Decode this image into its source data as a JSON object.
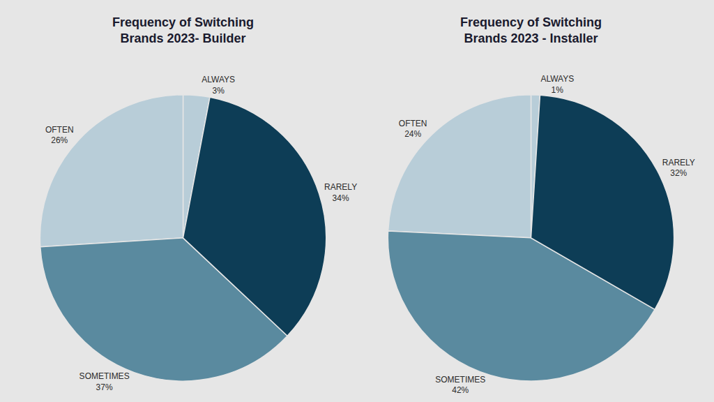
{
  "chart_data": [
    {
      "type": "pie",
      "title": "Frequency of Switching\nBrands 2023- Builder",
      "categories": [
        "ALWAYS",
        "OFTEN",
        "SOMETIMES",
        "RARELY"
      ],
      "values": [
        3,
        26,
        37,
        34
      ],
      "value_labels": [
        "3%",
        "26%",
        "37%",
        "34%"
      ],
      "colors": [
        "#b8cdd8",
        "#b8cdd8",
        "#5a8a9f",
        "#0d3d56"
      ]
    },
    {
      "type": "pie",
      "title": "Frequency of Switching\nBrands 2023 - Installer",
      "categories": [
        "ALWAYS",
        "OFTEN",
        "SOMETIMES",
        "RARELY"
      ],
      "values": [
        1,
        24,
        42,
        32
      ],
      "value_labels": [
        "1%",
        "24%",
        "42%",
        "32%"
      ],
      "colors": [
        "#b8cdd8",
        "#b8cdd8",
        "#5a8a9f",
        "#0d3d56"
      ]
    }
  ]
}
